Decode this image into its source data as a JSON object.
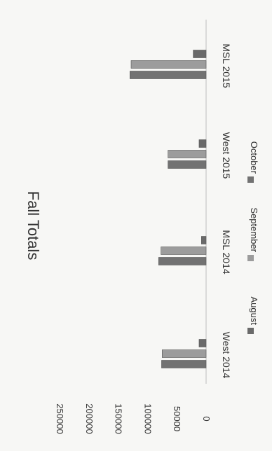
{
  "chart_data": {
    "type": "bar",
    "title": "Fall Totals",
    "categories": [
      "West 2014",
      "MSL 2014",
      "West 2015",
      "MSL 2015"
    ],
    "series": [
      {
        "name": "August",
        "color": "#6a6a6a",
        "values": [
          12000,
          8000,
          12000,
          22000
        ]
      },
      {
        "name": "September",
        "color": "#9c9c9c",
        "values": [
          75000,
          77000,
          65000,
          128000
        ]
      },
      {
        "name": "October",
        "color": "#727272",
        "values": [
          76000,
          81000,
          65000,
          130000
        ]
      }
    ],
    "y_ticks": [
      "0",
      "50000",
      "100000",
      "150000",
      "200000",
      "250000"
    ],
    "ylim": [
      0,
      250000
    ],
    "legend_position": "bottom",
    "orientation": "rotated 90 degrees clockwise"
  }
}
